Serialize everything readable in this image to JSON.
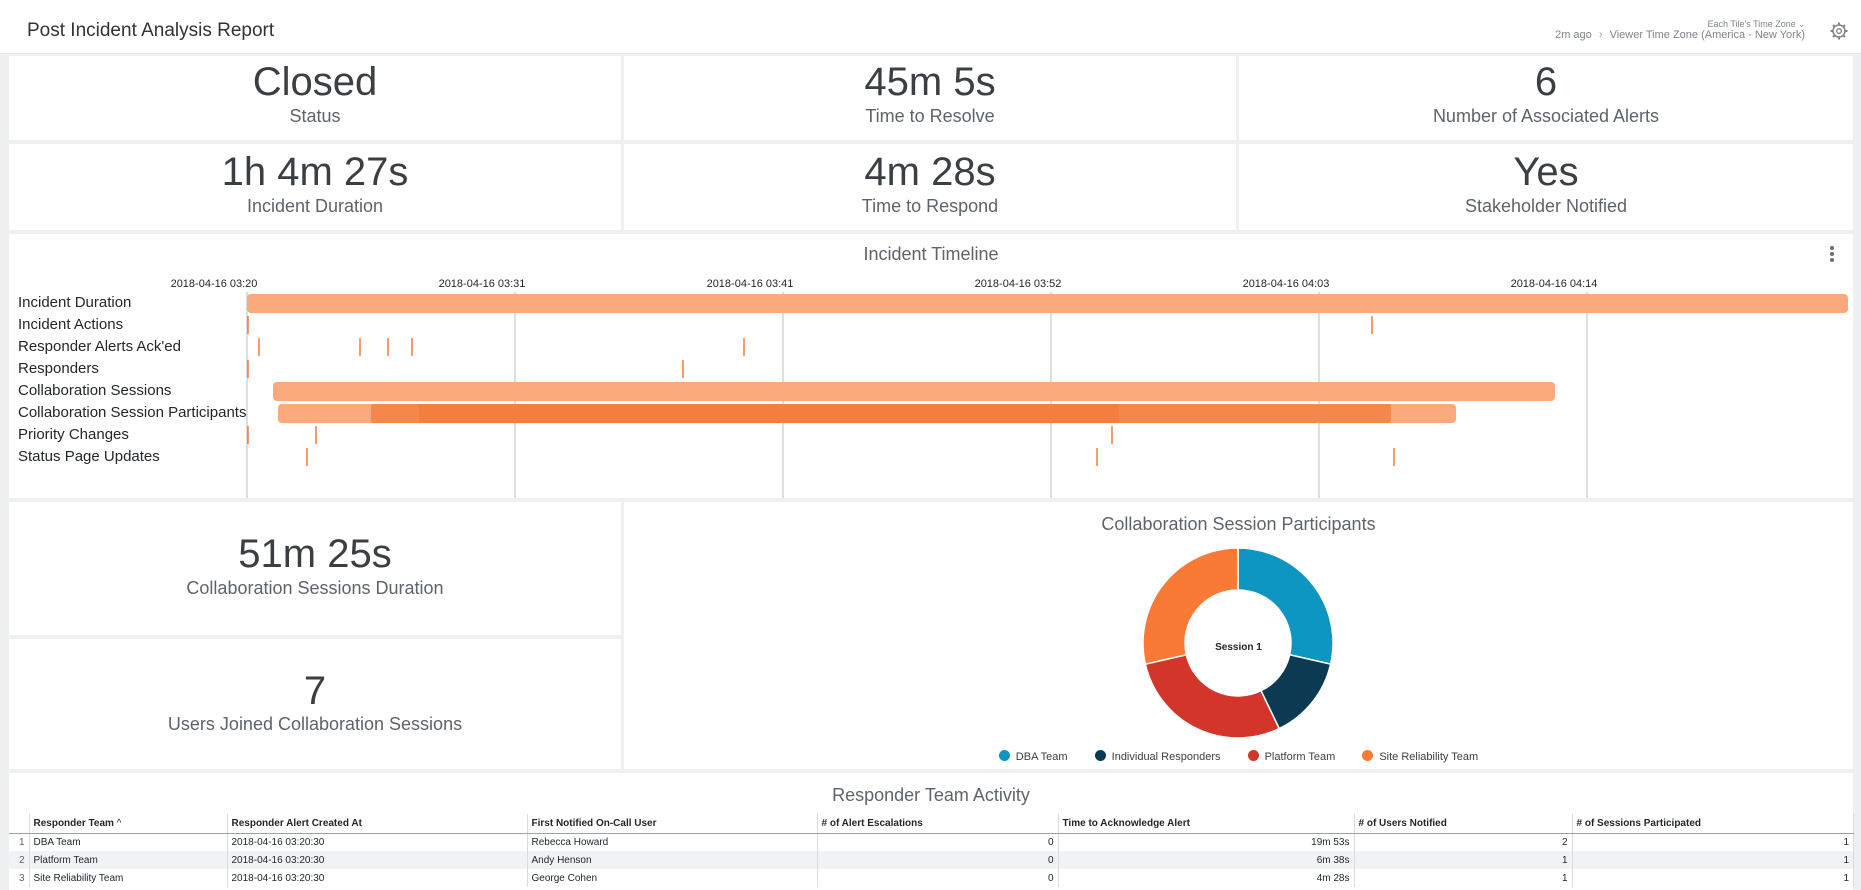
{
  "header": {
    "title": "Post Incident Analysis Report",
    "tz_caption": "Each Tile's Time Zone",
    "updated": "2m ago",
    "timezone": "Viewer Time Zone (America - New York)"
  },
  "kpis": {
    "status": {
      "value": "Closed",
      "label": "Status"
    },
    "time_to_resolve": {
      "value": "45m 5s",
      "label": "Time to Resolve"
    },
    "alerts": {
      "value": "6",
      "label": "Number of Associated Alerts"
    },
    "duration": {
      "value": "1h 4m 27s",
      "label": "Incident Duration"
    },
    "time_to_respond": {
      "value": "4m 28s",
      "label": "Time to Respond"
    },
    "stakeholder": {
      "value": "Yes",
      "label": "Stakeholder Notified"
    },
    "collab_duration": {
      "value": "51m 25s",
      "label": "Collaboration Sessions Duration"
    },
    "users_joined": {
      "value": "7",
      "label": "Users Joined Collaboration Sessions"
    }
  },
  "timeline": {
    "title": "Incident Timeline",
    "ticks": [
      "2018-04-16 03:20",
      "2018-04-16 03:31",
      "2018-04-16 03:41",
      "2018-04-16 03:52",
      "2018-04-16 04:03",
      "2018-04-16 04:14"
    ],
    "rows": [
      "Incident Duration",
      "Incident Actions",
      "Responder Alerts Ack'ed",
      "Responders",
      "Collaboration Sessions",
      "Collaboration Session Participants",
      "Priority Changes",
      "Status Page Updates"
    ],
    "colors": {
      "bar": "#f9a97b",
      "bar_dark": "#f47c3c",
      "mark": "#f47c3c"
    }
  },
  "donut": {
    "title": "Collaboration Session Participants",
    "center_label": "Session 1",
    "segments": [
      {
        "name": "DBA Team",
        "value": 2,
        "color": "#0e96c3"
      },
      {
        "name": "Individual Responders",
        "value": 1,
        "color": "#0b3a52"
      },
      {
        "name": "Platform Team",
        "value": 2,
        "color": "#d3352a"
      },
      {
        "name": "Site Reliability Team",
        "value": 2,
        "color": "#f97a35"
      }
    ]
  },
  "table": {
    "title": "Responder Team Activity",
    "columns": [
      "Responder Team",
      "Responder Alert Created At",
      "First Notified On-Call User",
      "# of Alert Escalations",
      "Time to Acknowledge Alert",
      "# of Users Notified",
      "# of Sessions Participated"
    ],
    "sort_indicator": "^",
    "rows": [
      [
        "1",
        "DBA Team",
        "2018-04-16 03:20:30",
        "Rebecca Howard",
        "0",
        "19m 53s",
        "2",
        "1"
      ],
      [
        "2",
        "Platform Team",
        "2018-04-16 03:20:30",
        "Andy Henson",
        "0",
        "6m 38s",
        "1",
        "1"
      ],
      [
        "3",
        "Site Reliability Team",
        "2018-04-16 03:20:30",
        "George Cohen",
        "0",
        "4m 28s",
        "1",
        "1"
      ]
    ]
  }
}
